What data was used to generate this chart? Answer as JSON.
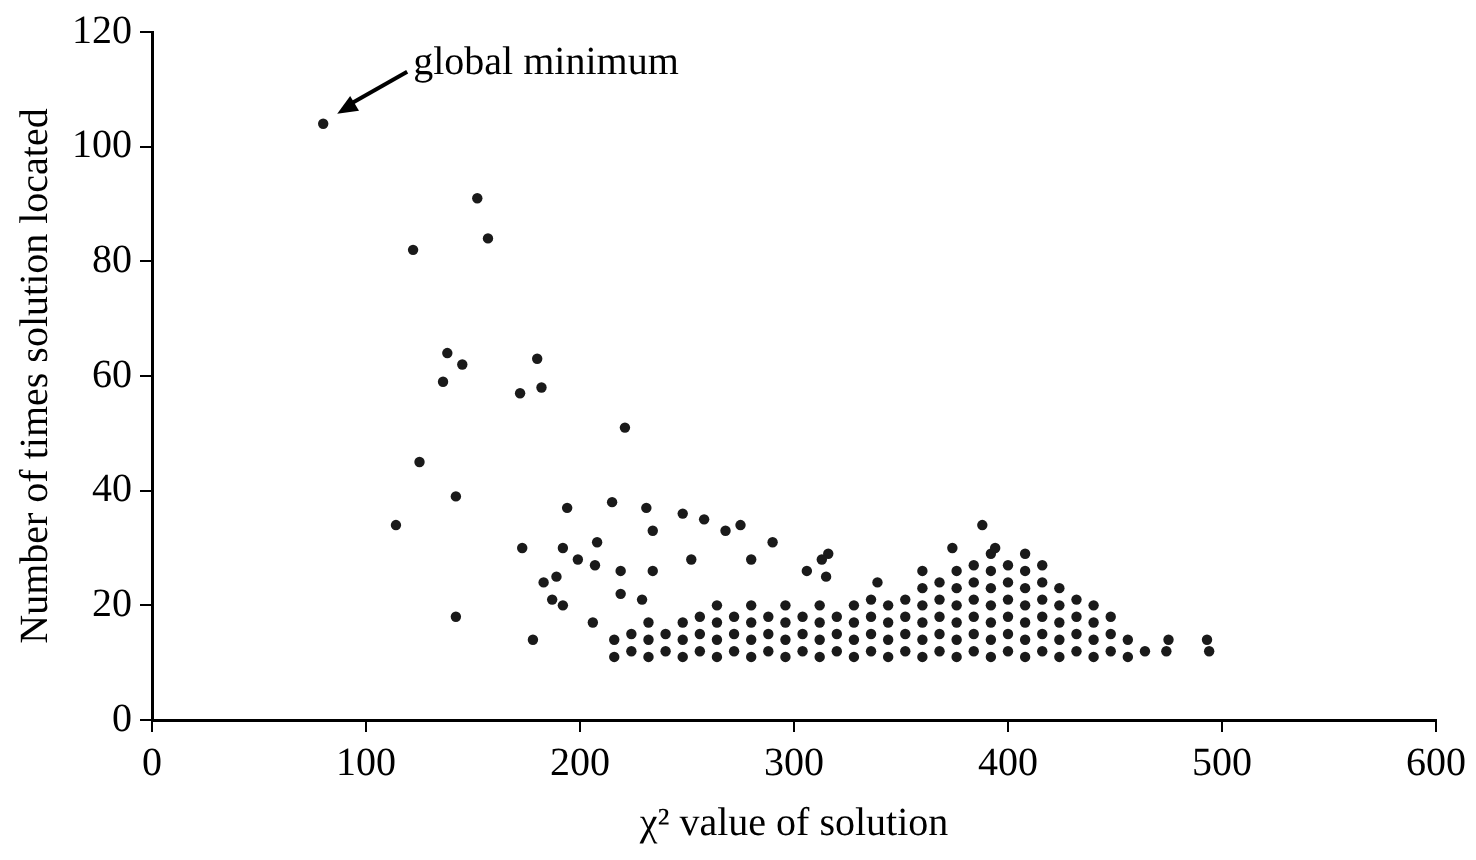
{
  "chart_data": {
    "type": "scatter",
    "xlabel": "χ² value of solution",
    "ylabel": "Number of times solution located",
    "xlim": [
      0,
      600
    ],
    "xticks": [
      0,
      100,
      200,
      300,
      400,
      500,
      600
    ],
    "ylim": [
      0,
      120
    ],
    "yticks": [
      0,
      20,
      40,
      60,
      80,
      100,
      120
    ],
    "grid": false,
    "legend": false,
    "marker": "circle",
    "annotations": [
      {
        "text": "global minimum",
        "x": 80,
        "y": 104
      }
    ],
    "series": [
      {
        "color": "#1a1a1a",
        "x": [
          80,
          152,
          157,
          122,
          138,
          145,
          136,
          180,
          182,
          172,
          221,
          125,
          142,
          114,
          142,
          194,
          215,
          173,
          231,
          234,
          248,
          258,
          268,
          275,
          290,
          316,
          388,
          394,
          374,
          192,
          208,
          199,
          207,
          219,
          234,
          252,
          280,
          183,
          189,
          187,
          192,
          178,
          206,
          219,
          229,
          306,
          313,
          315,
          360,
          339,
          493,
          494,
          475,
          474
        ],
        "values": [
          104,
          91,
          84,
          82,
          64,
          62,
          59,
          63,
          58,
          57,
          51,
          45,
          39,
          34,
          18,
          37,
          38,
          30,
          37,
          33,
          36,
          35,
          33,
          34,
          31,
          29,
          34,
          30,
          30,
          30,
          31,
          28,
          27,
          26,
          26,
          28,
          28,
          24,
          25,
          21,
          20,
          14,
          17,
          22,
          21,
          26,
          28,
          25,
          26,
          24,
          14,
          12,
          14,
          12
        ]
      },
      {
        "color": "#1a1a1a",
        "x": [
          216,
          216,
          224,
          224,
          232,
          232,
          232,
          240,
          240,
          248,
          248,
          248,
          256,
          256,
          256,
          264,
          264,
          264,
          264,
          272,
          272,
          272,
          280,
          280,
          280,
          280,
          288,
          288,
          288,
          296,
          296,
          296,
          296,
          304,
          304,
          304,
          312,
          312,
          312,
          312,
          320,
          320,
          320,
          328,
          328,
          328,
          328,
          336,
          336,
          336,
          336,
          344,
          344,
          344,
          344,
          352,
          352,
          352,
          352,
          360,
          360,
          360,
          360,
          360,
          368,
          368,
          368,
          368,
          368,
          376,
          376,
          376,
          376,
          376,
          376,
          384,
          384,
          384,
          384,
          384,
          384,
          392,
          392,
          392,
          392,
          392,
          392,
          392,
          400,
          400,
          400,
          400,
          400,
          400,
          408,
          408,
          408,
          408,
          408,
          408,
          408,
          416,
          416,
          416,
          416,
          416,
          416,
          424,
          424,
          424,
          424,
          424,
          432,
          432,
          432,
          432,
          440,
          440,
          440,
          440,
          448,
          448,
          448,
          456,
          456,
          464
        ],
        "values": [
          11,
          14,
          12,
          15,
          11,
          14,
          17,
          12,
          15,
          11,
          14,
          17,
          12,
          15,
          18,
          11,
          14,
          17,
          20,
          12,
          15,
          18,
          11,
          14,
          17,
          20,
          12,
          15,
          18,
          11,
          14,
          17,
          20,
          12,
          15,
          18,
          11,
          14,
          17,
          20,
          12,
          15,
          18,
          11,
          14,
          17,
          20,
          12,
          15,
          18,
          21,
          11,
          14,
          17,
          20,
          12,
          15,
          18,
          21,
          11,
          14,
          17,
          20,
          23,
          12,
          15,
          18,
          21,
          24,
          11,
          14,
          17,
          20,
          23,
          26,
          12,
          15,
          18,
          21,
          24,
          27,
          11,
          14,
          17,
          20,
          23,
          26,
          29,
          12,
          15,
          18,
          21,
          24,
          27,
          11,
          14,
          17,
          20,
          23,
          26,
          29,
          12,
          15,
          18,
          21,
          24,
          27,
          11,
          14,
          17,
          20,
          23,
          12,
          15,
          18,
          21,
          11,
          14,
          17,
          20,
          12,
          15,
          18,
          11,
          14,
          12
        ]
      }
    ]
  }
}
